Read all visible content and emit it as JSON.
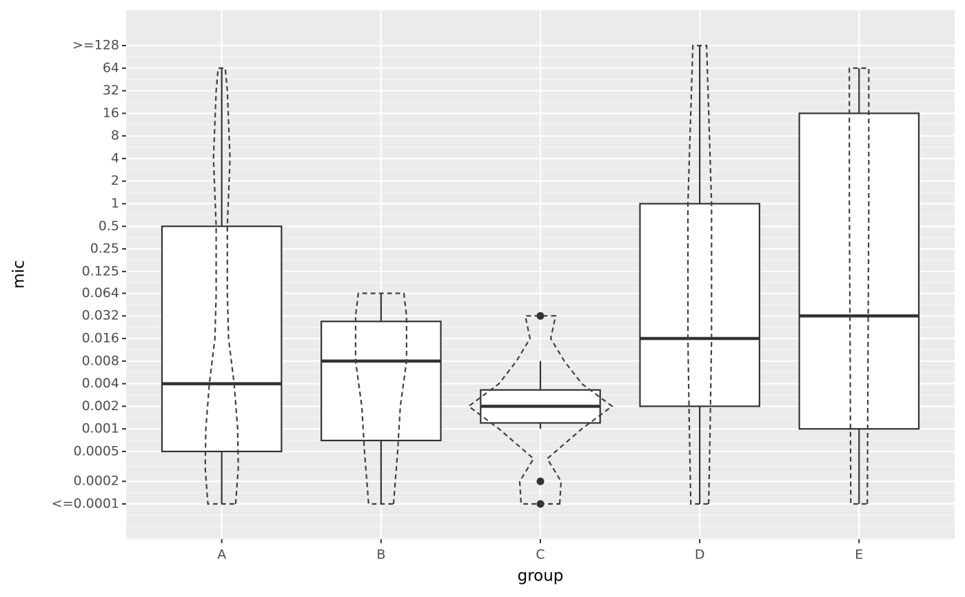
{
  "chart_data": {
    "type": "box",
    "x_label": "group",
    "y_label": "mic",
    "categories": [
      "A",
      "B",
      "C",
      "D",
      "E"
    ],
    "log_base": 2,
    "ylim": [
      3.4e-05,
      377
    ],
    "yticks": [
      {
        "value": 0.0001,
        "label": "<=0.0001"
      },
      0.0002,
      0.0005,
      0.001,
      0.002,
      0.004,
      0.008,
      0.016,
      0.032,
      0.064,
      0.125,
      0.25,
      0.5,
      1,
      2,
      4,
      8,
      16,
      32,
      64,
      {
        "value": 128,
        "label": ">=128"
      }
    ],
    "grid": true,
    "box_color": "#333333",
    "box_fill": "#ffffff",
    "boxes": [
      {
        "low": 0.0001,
        "q1": 0.0005,
        "median": 0.004,
        "q3": 0.5,
        "high": 64,
        "outliers": []
      },
      {
        "low": 0.0001,
        "q1": 0.0007,
        "median": 0.008,
        "q3": 0.027,
        "high": 0.064,
        "outliers": []
      },
      {
        "low": 0.001,
        "q1": 0.0012,
        "median": 0.002,
        "q3": 0.0033,
        "high": 0.008,
        "outliers": [
          0.032,
          0.0002,
          0.0001
        ]
      },
      {
        "low": 0.0001,
        "q1": 0.002,
        "median": 0.016,
        "q3": 1,
        "high": 128,
        "outliers": []
      },
      {
        "low": 0.0001,
        "q1": 0.001,
        "median": 0.032,
        "q3": 16,
        "high": 64,
        "outliers": []
      }
    ],
    "violin_color": "#404040",
    "violins": [
      {
        "y": [
          0.0001,
          0.0003,
          0.001,
          0.004,
          0.016,
          0.064,
          0.5,
          4,
          32,
          64
        ],
        "width": [
          0.087,
          0.104,
          0.1,
          0.078,
          0.043,
          0.035,
          0.035,
          0.052,
          0.035,
          0.022
        ]
      },
      {
        "y": [
          0.0001,
          0.0005,
          0.002,
          0.008,
          0.032,
          0.064
        ],
        "width": [
          0.078,
          0.104,
          0.121,
          0.16,
          0.16,
          0.143
        ]
      },
      {
        "y": [
          0.0001,
          0.0002,
          0.0004,
          0.001,
          0.002,
          0.004,
          0.008,
          0.016,
          0.032
        ],
        "width": [
          0.121,
          0.13,
          0.043,
          0.26,
          0.45,
          0.26,
          0.15,
          0.065,
          0.095
        ]
      },
      {
        "y": [
          0.0001,
          0.001,
          0.016,
          1,
          128
        ],
        "width": [
          0.056,
          0.065,
          0.074,
          0.074,
          0.043
        ]
      },
      {
        "y": [
          0.0001,
          0.01,
          1,
          64
        ],
        "width": [
          0.052,
          0.056,
          0.061,
          0.061
        ]
      }
    ]
  }
}
